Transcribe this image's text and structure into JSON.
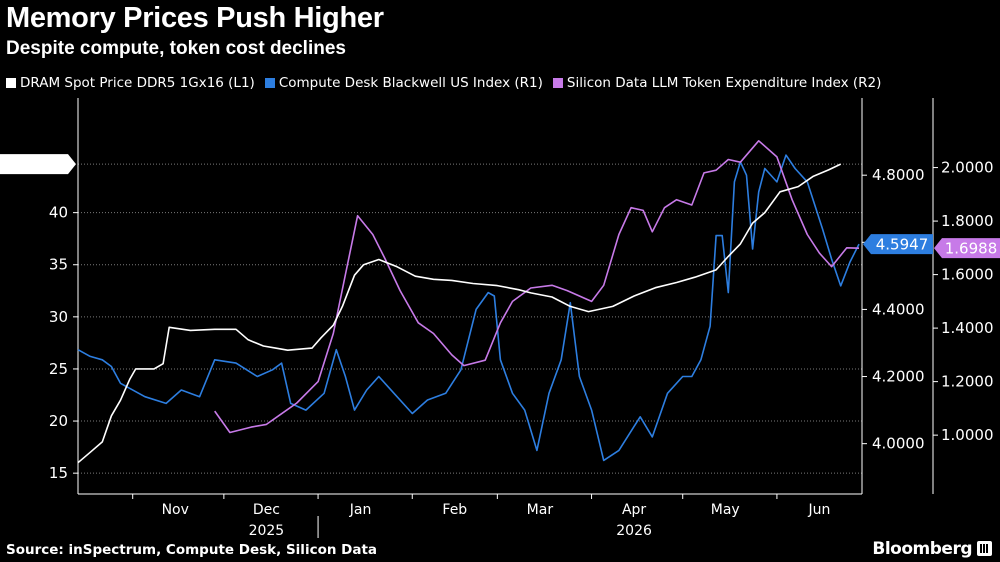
{
  "title": "Memory Prices Push Higher",
  "subtitle": "Despite compute, token cost declines",
  "source": "Source: inSpectrum, Compute Desk, Silicon Data",
  "brand": "Bloomberg",
  "colors": {
    "background": "#000000",
    "dram": "#ffffff",
    "compute": "#2d7ee0",
    "token": "#c77ae8"
  },
  "chart_data": {
    "type": "line",
    "x_unit": "date",
    "xlim": [
      "2025-10-14",
      "2026-06-29"
    ],
    "x_tick_labels": [
      {
        "label": "Nov",
        "date": "2025-11-15"
      },
      {
        "label": "Dec",
        "date": "2025-12-15"
      },
      {
        "label": "Jan",
        "date": "2026-01-15"
      },
      {
        "label": "Feb",
        "date": "2026-02-15"
      },
      {
        "label": "Mar",
        "date": "2026-03-15"
      },
      {
        "label": "Apr",
        "date": "2026-04-15"
      },
      {
        "label": "May",
        "date": "2026-05-15"
      },
      {
        "label": "Jun",
        "date": "2026-06-15"
      }
    ],
    "year_labels": [
      {
        "label": "2025",
        "date": "2025-12-15"
      },
      {
        "label": "2026",
        "date": "2026-04-15"
      }
    ],
    "year_separator": "2026-01-01",
    "grid": true,
    "axes": {
      "L1": {
        "ylim": [
          13,
          51
        ],
        "ticks": [
          "15",
          "20",
          "25",
          "30",
          "35",
          "40"
        ]
      },
      "R1": {
        "ylim": [
          3.85,
          5.03
        ],
        "ticks": [
          "4.0000",
          "4.2000",
          "4.4000",
          "4.6000",
          "4.8000"
        ]
      },
      "R2": {
        "ylim": [
          0.78,
          2.26
        ],
        "ticks": [
          "1.0000",
          "1.2000",
          "1.4000",
          "1.6000",
          "1.8000",
          "2.0000"
        ]
      }
    },
    "series": [
      {
        "name": "DRAM Spot Price DDR5 1Gx16 (L1)",
        "axis": "L1",
        "last_value": "44.6600",
        "points": [
          [
            "2025-10-14",
            16.0
          ],
          [
            "2025-10-18",
            17.0
          ],
          [
            "2025-10-22",
            18.0
          ],
          [
            "2025-10-25",
            20.5
          ],
          [
            "2025-10-28",
            22.0
          ],
          [
            "2025-10-31",
            24.0
          ],
          [
            "2025-11-02",
            25.0
          ],
          [
            "2025-11-08",
            25.0
          ],
          [
            "2025-11-11",
            25.5
          ],
          [
            "2025-11-13",
            29.0
          ],
          [
            "2025-11-20",
            28.7
          ],
          [
            "2025-11-28",
            28.8
          ],
          [
            "2025-12-05",
            28.8
          ],
          [
            "2025-12-09",
            27.8
          ],
          [
            "2025-12-14",
            27.2
          ],
          [
            "2025-12-18",
            27.0
          ],
          [
            "2025-12-22",
            26.8
          ],
          [
            "2025-12-30",
            27.0
          ],
          [
            "2026-01-02",
            28.0
          ],
          [
            "2026-01-06",
            29.2
          ],
          [
            "2026-01-09",
            31.0
          ],
          [
            "2026-01-13",
            34.0
          ],
          [
            "2026-01-16",
            35.0
          ],
          [
            "2026-01-21",
            35.5
          ],
          [
            "2026-01-27",
            34.8
          ],
          [
            "2026-02-02",
            33.9
          ],
          [
            "2026-02-08",
            33.6
          ],
          [
            "2026-02-14",
            33.5
          ],
          [
            "2026-02-21",
            33.2
          ],
          [
            "2026-03-01",
            33.0
          ],
          [
            "2026-03-08",
            32.6
          ],
          [
            "2026-03-12",
            32.3
          ],
          [
            "2026-03-19",
            31.9
          ],
          [
            "2026-03-25",
            31.0
          ],
          [
            "2026-03-31",
            30.5
          ],
          [
            "2026-04-08",
            31.0
          ],
          [
            "2026-04-15",
            32.0
          ],
          [
            "2026-04-22",
            32.8
          ],
          [
            "2026-04-29",
            33.3
          ],
          [
            "2026-05-05",
            33.8
          ],
          [
            "2026-05-12",
            34.5
          ],
          [
            "2026-05-16",
            35.8
          ],
          [
            "2026-05-20",
            37.0
          ],
          [
            "2026-05-24",
            39.0
          ],
          [
            "2026-05-28",
            40.0
          ],
          [
            "2026-06-02",
            42.0
          ],
          [
            "2026-06-08",
            42.5
          ],
          [
            "2026-06-13",
            43.5
          ],
          [
            "2026-06-18",
            44.1
          ],
          [
            "2026-06-22",
            44.66
          ]
        ]
      },
      {
        "name": "Compute Desk Blackwell US Index  (R1)",
        "axis": "R1",
        "last_value": "4.5947",
        "points": [
          [
            "2025-10-14",
            4.28
          ],
          [
            "2025-10-18",
            4.26
          ],
          [
            "2025-10-22",
            4.25
          ],
          [
            "2025-10-25",
            4.23
          ],
          [
            "2025-10-28",
            4.18
          ],
          [
            "2025-11-05",
            4.14
          ],
          [
            "2025-11-12",
            4.12
          ],
          [
            "2025-11-17",
            4.16
          ],
          [
            "2025-11-23",
            4.14
          ],
          [
            "2025-11-28",
            4.25
          ],
          [
            "2025-12-05",
            4.24
          ],
          [
            "2025-12-12",
            4.2
          ],
          [
            "2025-12-17",
            4.22
          ],
          [
            "2025-12-20",
            4.24
          ],
          [
            "2025-12-23",
            4.12
          ],
          [
            "2025-12-28",
            4.1
          ],
          [
            "2026-01-03",
            4.15
          ],
          [
            "2026-01-07",
            4.28
          ],
          [
            "2026-01-10",
            4.2
          ],
          [
            "2026-01-13",
            4.1
          ],
          [
            "2026-01-17",
            4.16
          ],
          [
            "2026-01-21",
            4.2
          ],
          [
            "2026-01-26",
            4.15
          ],
          [
            "2026-02-01",
            4.09
          ],
          [
            "2026-02-06",
            4.13
          ],
          [
            "2026-02-12",
            4.15
          ],
          [
            "2026-02-17",
            4.22
          ],
          [
            "2026-02-22",
            4.4
          ],
          [
            "2026-02-26",
            4.45
          ],
          [
            "2026-02-28",
            4.44
          ],
          [
            "2026-03-02",
            4.25
          ],
          [
            "2026-03-06",
            4.15
          ],
          [
            "2026-03-10",
            4.1
          ],
          [
            "2026-03-14",
            3.98
          ],
          [
            "2026-03-18",
            4.15
          ],
          [
            "2026-03-22",
            4.25
          ],
          [
            "2026-03-25",
            4.42
          ],
          [
            "2026-03-28",
            4.2
          ],
          [
            "2026-04-01",
            4.1
          ],
          [
            "2026-04-05",
            3.95
          ],
          [
            "2026-04-10",
            3.98
          ],
          [
            "2026-04-17",
            4.08
          ],
          [
            "2026-04-21",
            4.02
          ],
          [
            "2026-04-26",
            4.15
          ],
          [
            "2026-05-01",
            4.2
          ],
          [
            "2026-05-04",
            4.2
          ],
          [
            "2026-05-07",
            4.25
          ],
          [
            "2026-05-10",
            4.35
          ],
          [
            "2026-05-12",
            4.62
          ],
          [
            "2026-05-14",
            4.62
          ],
          [
            "2026-05-16",
            4.45
          ],
          [
            "2026-05-18",
            4.78
          ],
          [
            "2026-05-20",
            4.84
          ],
          [
            "2026-05-22",
            4.8
          ],
          [
            "2026-05-24",
            4.58
          ],
          [
            "2026-05-26",
            4.75
          ],
          [
            "2026-05-28",
            4.82
          ],
          [
            "2026-06-01",
            4.78
          ],
          [
            "2026-06-04",
            4.86
          ],
          [
            "2026-06-07",
            4.82
          ],
          [
            "2026-06-11",
            4.78
          ],
          [
            "2026-06-16",
            4.64
          ],
          [
            "2026-06-19",
            4.55
          ],
          [
            "2026-06-22",
            4.47
          ],
          [
            "2026-06-25",
            4.54
          ],
          [
            "2026-06-28",
            4.5947
          ]
        ]
      },
      {
        "name": "Silicon Data LLM Token Expenditure Index (R2)",
        "axis": "R2",
        "last_value": "1.6988",
        "points": [
          [
            "2025-11-28",
            1.09
          ],
          [
            "2025-12-03",
            1.01
          ],
          [
            "2025-12-10",
            1.03
          ],
          [
            "2025-12-15",
            1.04
          ],
          [
            "2025-12-20",
            1.08
          ],
          [
            "2025-12-25",
            1.12
          ],
          [
            "2026-01-01",
            1.2
          ],
          [
            "2026-01-06",
            1.38
          ],
          [
            "2026-01-10",
            1.6
          ],
          [
            "2026-01-14",
            1.82
          ],
          [
            "2026-01-19",
            1.75
          ],
          [
            "2026-01-23",
            1.66
          ],
          [
            "2026-01-28",
            1.54
          ],
          [
            "2026-02-03",
            1.42
          ],
          [
            "2026-02-08",
            1.38
          ],
          [
            "2026-02-14",
            1.3
          ],
          [
            "2026-02-18",
            1.26
          ],
          [
            "2026-02-25",
            1.28
          ],
          [
            "2026-03-02",
            1.42
          ],
          [
            "2026-03-06",
            1.5
          ],
          [
            "2026-03-12",
            1.55
          ],
          [
            "2026-03-19",
            1.56
          ],
          [
            "2026-03-24",
            1.54
          ],
          [
            "2026-04-01",
            1.5
          ],
          [
            "2026-04-05",
            1.56
          ],
          [
            "2026-04-10",
            1.75
          ],
          [
            "2026-04-14",
            1.85
          ],
          [
            "2026-04-18",
            1.84
          ],
          [
            "2026-04-21",
            1.76
          ],
          [
            "2026-04-25",
            1.85
          ],
          [
            "2026-04-29",
            1.88
          ],
          [
            "2026-05-04",
            1.86
          ],
          [
            "2026-05-08",
            1.98
          ],
          [
            "2026-05-12",
            1.99
          ],
          [
            "2026-05-16",
            2.03
          ],
          [
            "2026-05-20",
            2.02
          ],
          [
            "2026-05-26",
            2.1
          ],
          [
            "2026-06-01",
            2.04
          ],
          [
            "2026-06-06",
            1.88
          ],
          [
            "2026-06-11",
            1.75
          ],
          [
            "2026-06-15",
            1.68
          ],
          [
            "2026-06-19",
            1.63
          ],
          [
            "2026-06-24",
            1.7
          ],
          [
            "2026-06-28",
            1.6988
          ]
        ]
      }
    ]
  }
}
